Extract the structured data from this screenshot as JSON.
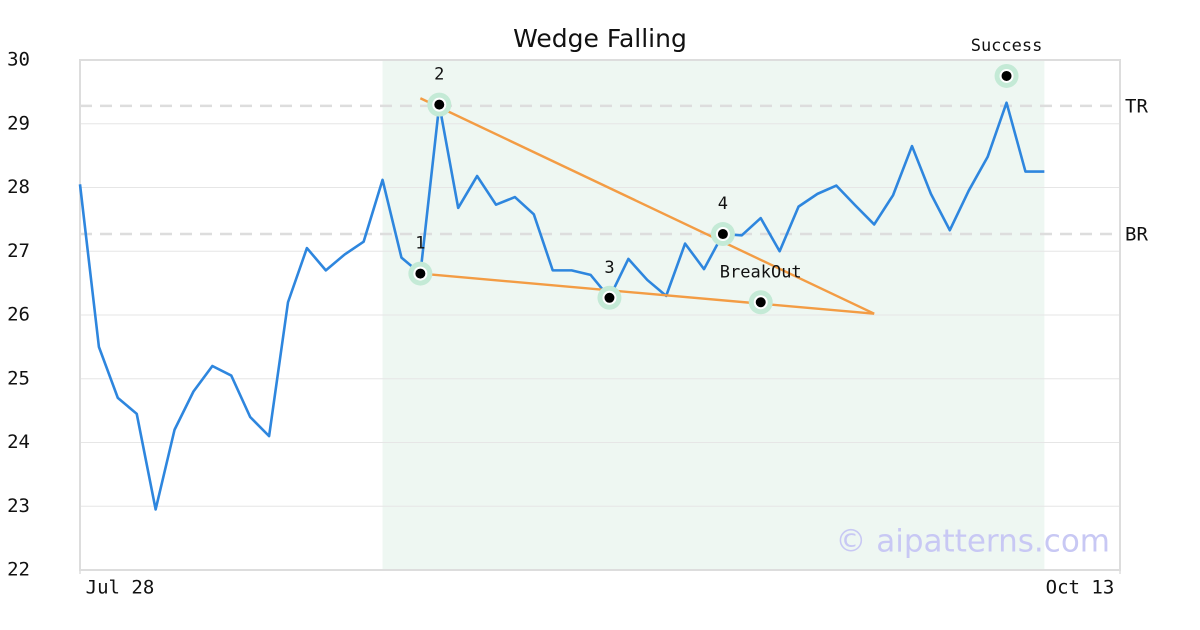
{
  "chart_data": {
    "type": "line",
    "title": "Wedge Falling",
    "x": [
      0,
      1,
      2,
      3,
      4,
      5,
      6,
      7,
      8,
      9,
      10,
      11,
      12,
      13,
      14,
      15,
      16,
      17,
      18,
      19,
      20,
      21,
      22,
      23,
      24,
      25,
      26,
      27,
      28,
      29,
      30,
      31,
      32,
      33,
      34,
      35,
      36,
      37,
      38,
      39,
      40,
      41,
      42,
      43,
      44,
      45,
      46,
      47,
      48,
      49,
      50,
      51
    ],
    "values": [
      28.05,
      25.5,
      24.7,
      24.45,
      22.95,
      24.2,
      24.8,
      25.2,
      25.05,
      24.4,
      24.1,
      26.2,
      27.05,
      26.7,
      26.95,
      27.15,
      28.12,
      26.9,
      26.65,
      29.3,
      27.68,
      28.18,
      27.73,
      27.85,
      27.58,
      26.7,
      26.7,
      26.63,
      26.27,
      26.88,
      26.55,
      26.3,
      27.12,
      26.72,
      27.27,
      27.25,
      27.52,
      27.0,
      27.7,
      27.9,
      28.03,
      27.72,
      27.42,
      27.88,
      28.65,
      27.9,
      27.33,
      27.95,
      28.48,
      29.33,
      28.25,
      28.25
    ],
    "color": "#2e86de",
    "xlim": [
      0,
      55
    ],
    "xticks": [
      {
        "value": 0,
        "label": "Jul 28"
      },
      {
        "value": 55,
        "label": "Oct 13"
      }
    ],
    "ylim": [
      22,
      30
    ],
    "yticks": [
      22,
      23,
      24,
      25,
      26,
      27,
      28,
      29,
      30
    ],
    "grid": true,
    "shaded_range": [
      16,
      51
    ],
    "reference_lines": [
      {
        "label": "TR",
        "value": 29.28
      },
      {
        "label": "BR",
        "value": 27.27
      }
    ],
    "trend_lines": [
      {
        "x": [
          18,
          42
        ],
        "y": [
          29.4,
          26.02
        ],
        "color": "#f39c44"
      },
      {
        "x": [
          18,
          42
        ],
        "y": [
          26.65,
          26.02
        ],
        "color": "#f39c44"
      }
    ],
    "points": [
      {
        "label": "1",
        "x": 18,
        "y": 26.65
      },
      {
        "label": "2",
        "x": 19,
        "y": 29.3
      },
      {
        "label": "3",
        "x": 28,
        "y": 26.27
      },
      {
        "label": "4",
        "x": 34,
        "y": 27.27
      },
      {
        "label": "BreakOut",
        "x": 36,
        "y": 26.2
      },
      {
        "label": "Success",
        "x": 49,
        "y": 29.75
      }
    ],
    "watermark": "© aipatterns.com"
  }
}
